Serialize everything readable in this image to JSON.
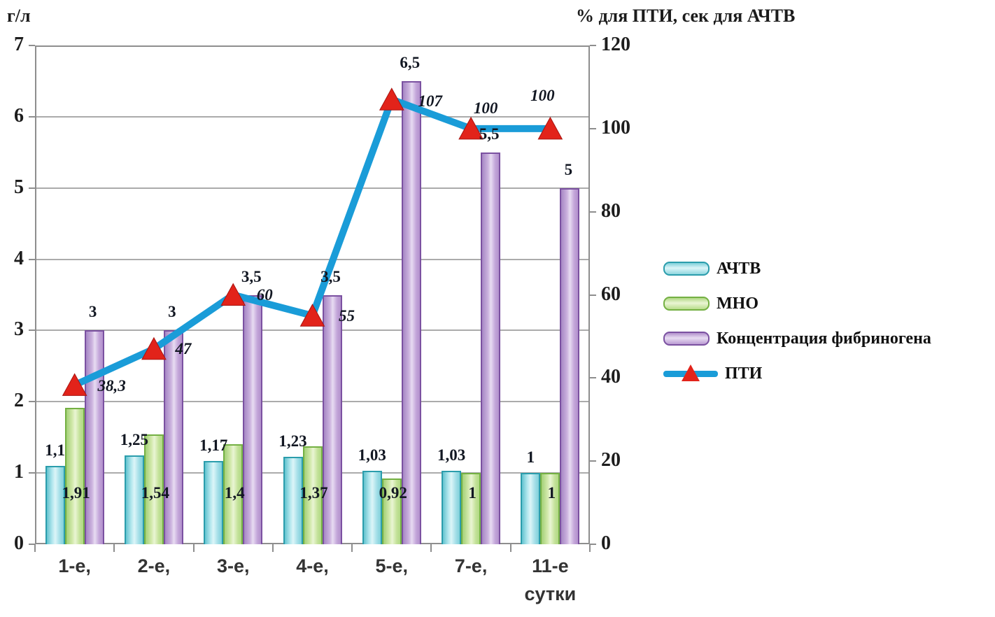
{
  "chart_data": {
    "type": "bar",
    "subtype": "combo-bar-line",
    "categories": [
      "1-е,",
      "2-е,",
      "3-е,",
      "4-е,",
      "5-е,",
      "7-е,",
      "11-е"
    ],
    "x_unit_label": "сутки",
    "grid": true,
    "legend_position": "right",
    "left_axis": {
      "title": "г/л",
      "min": 0,
      "max": 7,
      "step": 1,
      "tick_labels": [
        "0",
        "1",
        "2",
        "3",
        "4",
        "5",
        "6",
        "7"
      ]
    },
    "right_axis": {
      "title": "% для ПТИ, сек для АЧТВ",
      "min": 0,
      "max": 120,
      "step": 20,
      "tick_labels": [
        "0",
        "20",
        "40",
        "60",
        "80",
        "100",
        "120"
      ]
    },
    "series": [
      {
        "name": "АЧТВ",
        "type": "bar",
        "axis": "left",
        "fill_color": "#a8e0e8",
        "border_color": "#2b9dac",
        "values": [
          1.1,
          1.25,
          1.17,
          1.23,
          1.03,
          1.03,
          1
        ],
        "labels": [
          "1,1",
          "1,25",
          "1,17",
          "1,23",
          "1,03",
          "1,03",
          "1"
        ]
      },
      {
        "name": "МНО",
        "type": "bar",
        "axis": "left",
        "fill_color": "#cde6a5",
        "border_color": "#74b043",
        "values": [
          1.91,
          1.54,
          1.4,
          1.37,
          0.92,
          1,
          1
        ],
        "labels": [
          "1,91",
          "1,54",
          "1,4",
          "1,37",
          "0,92",
          "1",
          "1"
        ]
      },
      {
        "name": "Концентрация фибриногена",
        "type": "bar",
        "axis": "left",
        "fill_color": "#cdafdf",
        "border_color": "#7b51a1",
        "values": [
          3,
          3,
          3.5,
          3.5,
          6.5,
          5.5,
          5
        ],
        "labels": [
          "3",
          "3",
          "3,5",
          "3,5",
          "6,5",
          "5,5",
          "5"
        ]
      },
      {
        "name": "ПТИ",
        "type": "line",
        "axis": "right",
        "line_color": "#1a9cd8",
        "marker_color": "#e2231a",
        "values": [
          38.3,
          47,
          60,
          55,
          107,
          100,
          100
        ],
        "labels": [
          "38,3",
          "47",
          "60",
          "55",
          "107",
          "100",
          "100"
        ]
      }
    ]
  }
}
